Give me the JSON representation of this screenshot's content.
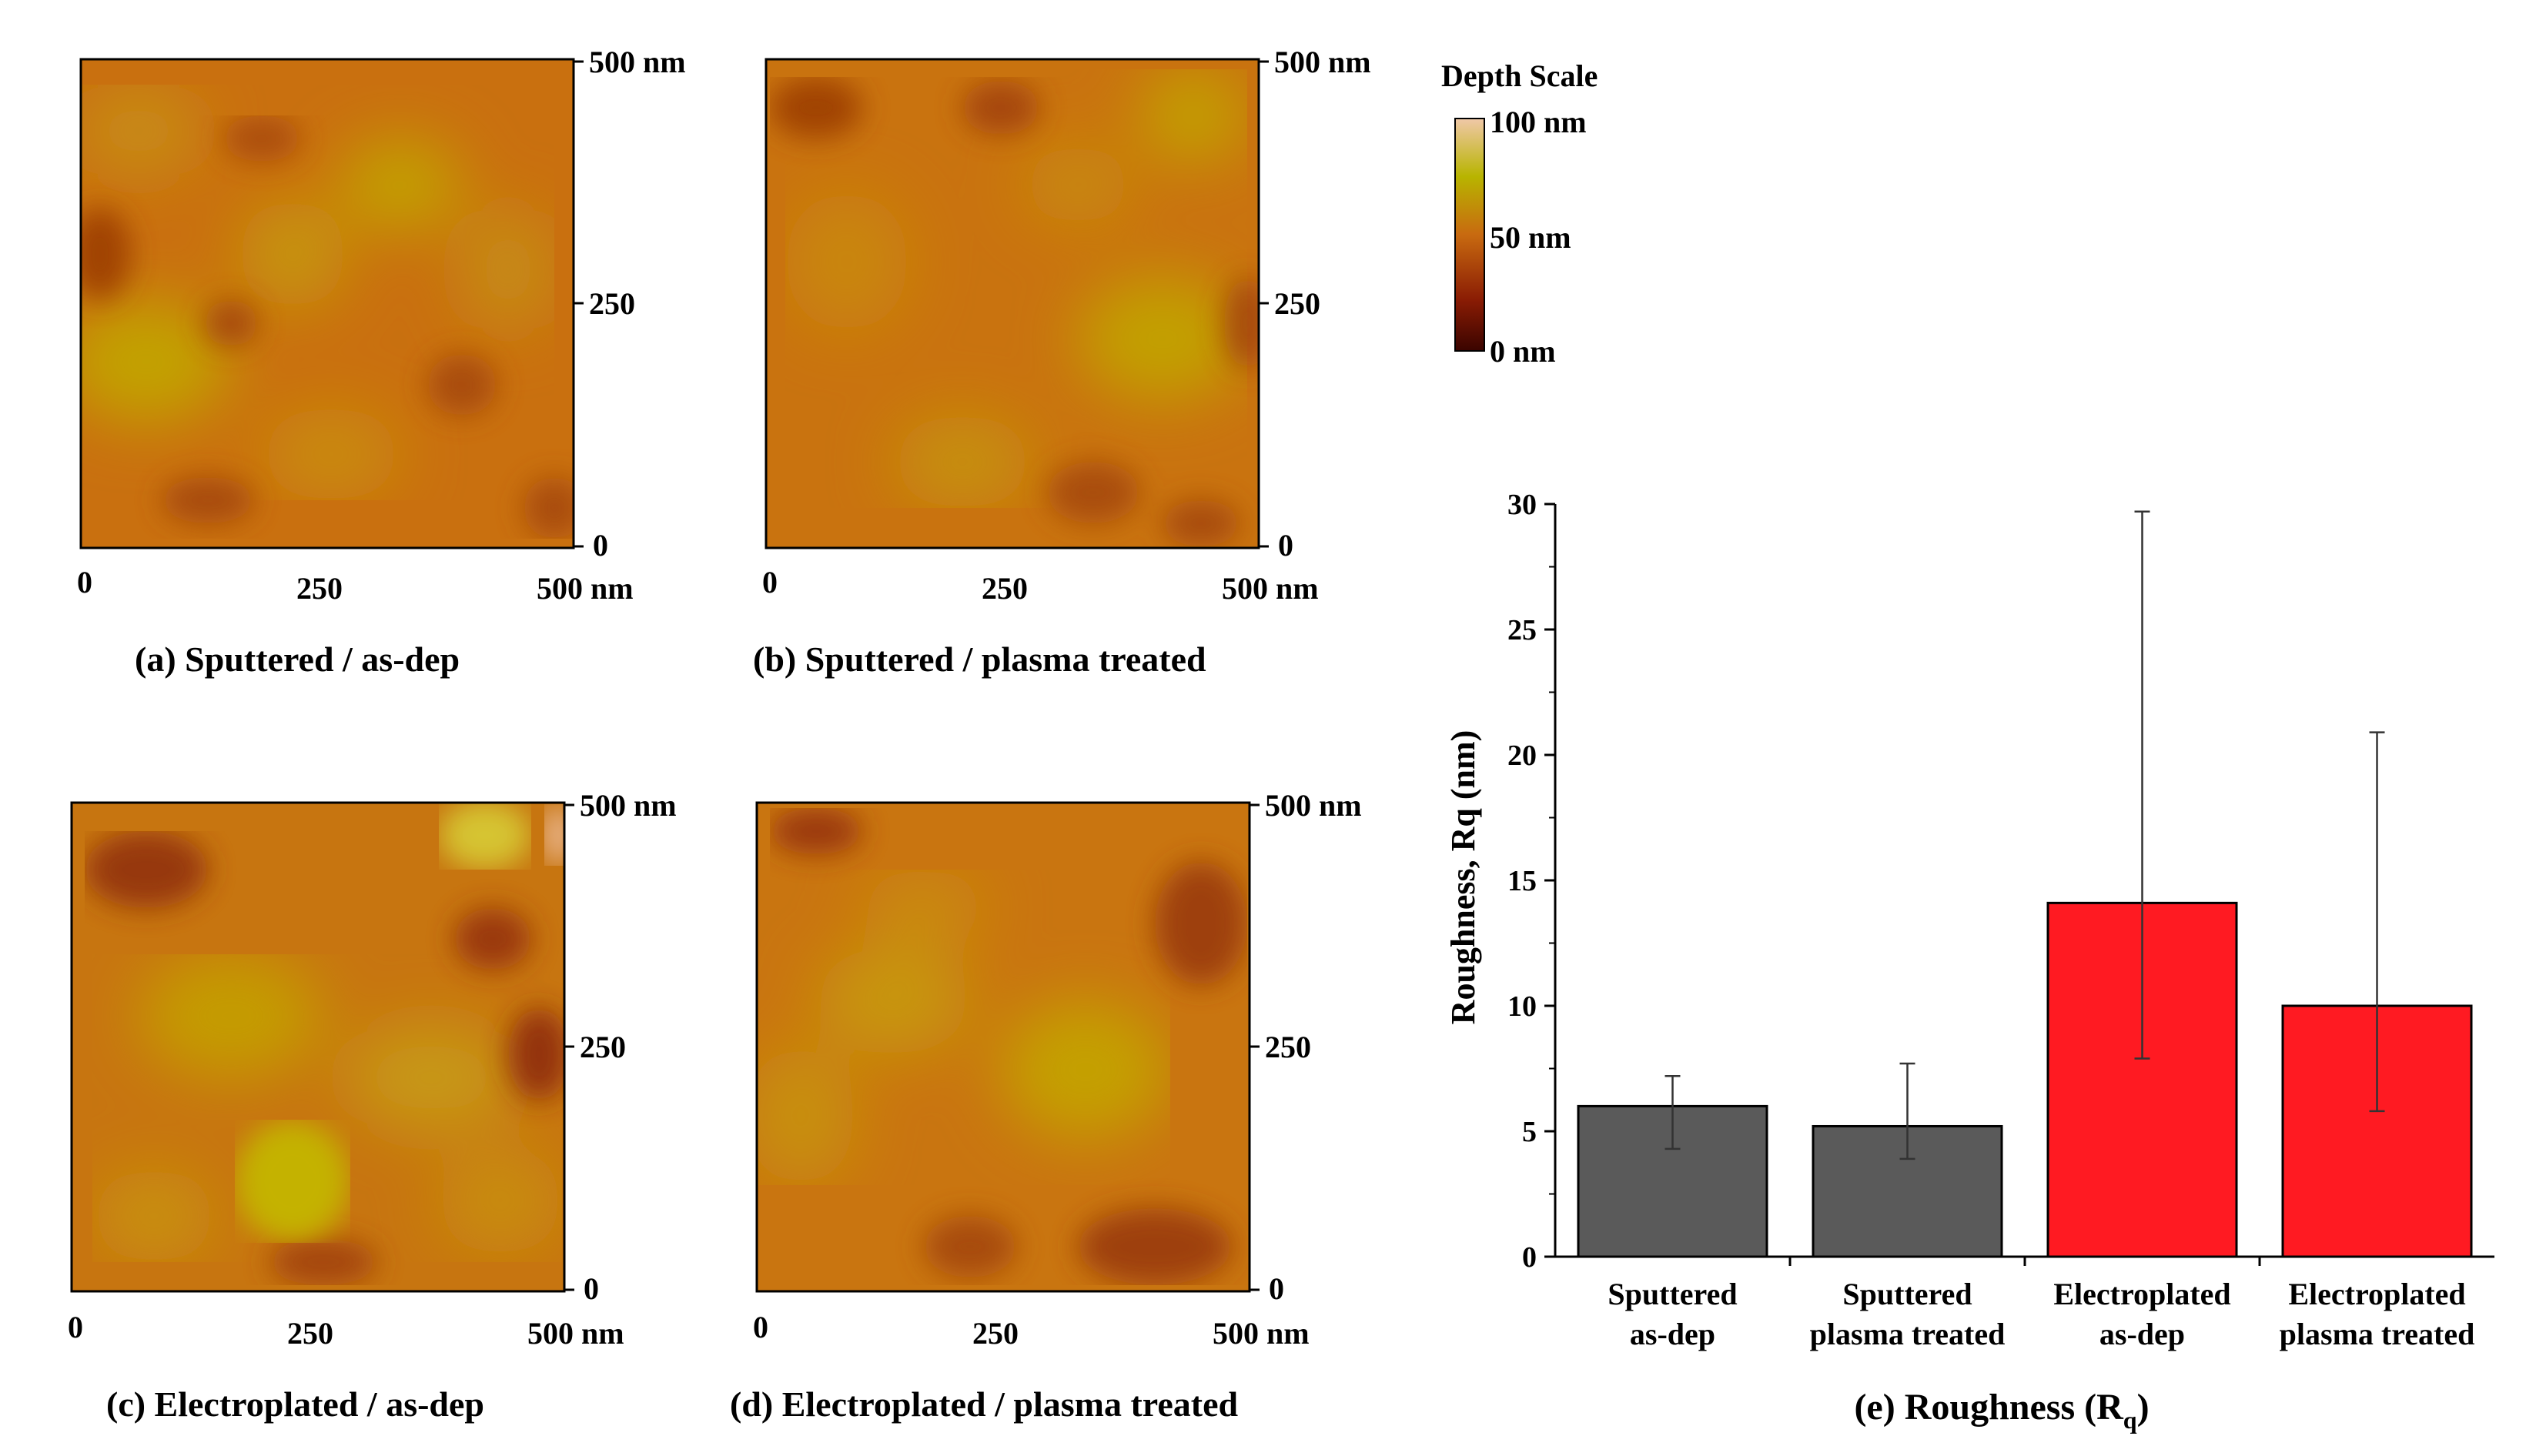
{
  "afm_panels": [
    {
      "id": "a",
      "caption": "(a) Sputtered / as-dep",
      "x_ticks": [
        "0",
        "250",
        "500 nm"
      ],
      "y_ticks": [
        "500 nm",
        "250",
        "0"
      ]
    },
    {
      "id": "b",
      "caption": "(b) Sputtered / plasma treated",
      "x_ticks": [
        "0",
        "250",
        "500 nm"
      ],
      "y_ticks": [
        "500 nm",
        "250",
        "0"
      ]
    },
    {
      "id": "c",
      "caption": "(c) Electroplated / as-dep",
      "x_ticks": [
        "0",
        "250",
        "500 nm"
      ],
      "y_ticks": [
        "500 nm",
        "250",
        "0"
      ]
    },
    {
      "id": "d",
      "caption": "(d) Electroplated / plasma treated",
      "x_ticks": [
        "0",
        "250",
        "500 nm"
      ],
      "y_ticks": [
        "500 nm",
        "250",
        "0"
      ]
    }
  ],
  "depth_scale": {
    "title": "Depth Scale",
    "labels": [
      "100 nm",
      "50 nm",
      "0 nm"
    ],
    "colors": [
      "#f0c8a8",
      "#b8b400",
      "#c86a10",
      "#8a1c04",
      "#3a0400"
    ]
  },
  "chart_data": {
    "type": "bar",
    "title": "(e) Roughness (R",
    "title_sub": "q",
    "title_close": ")",
    "ylabel": "Roughness, Rq (nm)",
    "xlabel": "",
    "ylim": [
      0,
      30
    ],
    "y_ticks": [
      0,
      5,
      10,
      15,
      20,
      25,
      30
    ],
    "categories": [
      [
        "Sputtered",
        "as-dep"
      ],
      [
        "Sputtered",
        "plasma treated"
      ],
      [
        "Electroplated",
        "as-dep"
      ],
      [
        "Electroplated",
        "plasma treated"
      ]
    ],
    "values": [
      6.0,
      5.2,
      14.1,
      10.0
    ],
    "error_low": [
      4.3,
      3.9,
      7.9,
      5.8
    ],
    "error_high": [
      7.2,
      7.7,
      29.7,
      20.9
    ],
    "colors": [
      "#5a5a5a",
      "#5a5a5a",
      "#ff1a22",
      "#ff1a22"
    ]
  }
}
